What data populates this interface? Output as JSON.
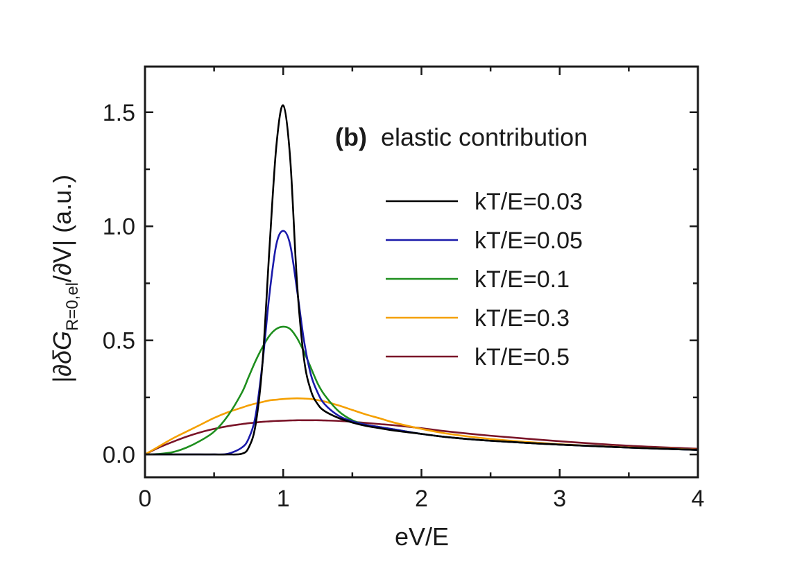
{
  "chart_data": {
    "type": "line",
    "annotation": {
      "tag": "(b)",
      "text": "elastic contribution"
    },
    "xlabel": "eV/E",
    "ylabel": {
      "main": "|∂δG",
      "sub": "R=0,el",
      "tail": "/∂V|  (a.u.)"
    },
    "xlim": [
      0,
      4
    ],
    "ylim": [
      -0.1,
      1.7
    ],
    "xticks": [
      0,
      1,
      2,
      3,
      4
    ],
    "xtick_labels": [
      "0",
      "1",
      "2",
      "3",
      "4"
    ],
    "yticks": [
      0.0,
      0.5,
      1.0,
      1.5
    ],
    "ytick_labels": [
      "0.0",
      "0.5",
      "1.0",
      "1.5"
    ],
    "grid": false,
    "legend_position": "right",
    "x": [
      0,
      0.1,
      0.2,
      0.3,
      0.4,
      0.5,
      0.6,
      0.7,
      0.75,
      0.8,
      0.85,
      0.9,
      0.95,
      1.0,
      1.05,
      1.1,
      1.15,
      1.2,
      1.25,
      1.3,
      1.4,
      1.5,
      1.6,
      1.7,
      1.8,
      2.0,
      2.2,
      2.5,
      3.0,
      3.5,
      4.0
    ],
    "series": [
      {
        "name": "kT/E=0.03",
        "color": "#000000",
        "values": [
          0,
          0,
          0,
          0,
          0,
          0,
          0,
          0.003,
          0.03,
          0.13,
          0.4,
          0.9,
          1.35,
          1.53,
          1.3,
          0.75,
          0.42,
          0.28,
          0.22,
          0.19,
          0.16,
          0.14,
          0.125,
          0.115,
          0.105,
          0.09,
          0.075,
          0.06,
          0.043,
          0.03,
          0.02
        ]
      },
      {
        "name": "kT/E=0.05",
        "color": "#1a1aaa",
        "values": [
          0,
          0,
          0,
          0,
          0,
          0,
          0.003,
          0.03,
          0.07,
          0.17,
          0.4,
          0.7,
          0.92,
          0.98,
          0.92,
          0.72,
          0.5,
          0.35,
          0.27,
          0.22,
          0.17,
          0.145,
          0.13,
          0.12,
          0.11,
          0.09,
          0.075,
          0.06,
          0.043,
          0.03,
          0.02
        ]
      },
      {
        "name": "kT/E=0.1",
        "color": "#1e8f1e",
        "values": [
          0,
          0.002,
          0.01,
          0.03,
          0.06,
          0.1,
          0.17,
          0.27,
          0.34,
          0.41,
          0.47,
          0.52,
          0.55,
          0.56,
          0.55,
          0.51,
          0.45,
          0.38,
          0.31,
          0.26,
          0.19,
          0.15,
          0.13,
          0.12,
          0.11,
          0.09,
          0.075,
          0.06,
          0.043,
          0.03,
          0.02
        ]
      },
      {
        "name": "kT/E=0.3",
        "color": "#f5a000",
        "values": [
          0,
          0.035,
          0.07,
          0.1,
          0.13,
          0.16,
          0.185,
          0.205,
          0.215,
          0.223,
          0.23,
          0.237,
          0.24,
          0.243,
          0.245,
          0.246,
          0.245,
          0.243,
          0.238,
          0.232,
          0.215,
          0.195,
          0.175,
          0.158,
          0.14,
          0.112,
          0.09,
          0.068,
          0.045,
          0.031,
          0.021
        ]
      },
      {
        "name": "kT/E=0.5",
        "color": "#7a1428",
        "values": [
          0,
          0.03,
          0.055,
          0.078,
          0.097,
          0.112,
          0.124,
          0.133,
          0.137,
          0.14,
          0.143,
          0.145,
          0.147,
          0.148,
          0.149,
          0.15,
          0.15,
          0.15,
          0.15,
          0.149,
          0.147,
          0.143,
          0.138,
          0.133,
          0.128,
          0.115,
          0.1,
          0.082,
          0.058,
          0.038,
          0.025
        ]
      }
    ]
  }
}
